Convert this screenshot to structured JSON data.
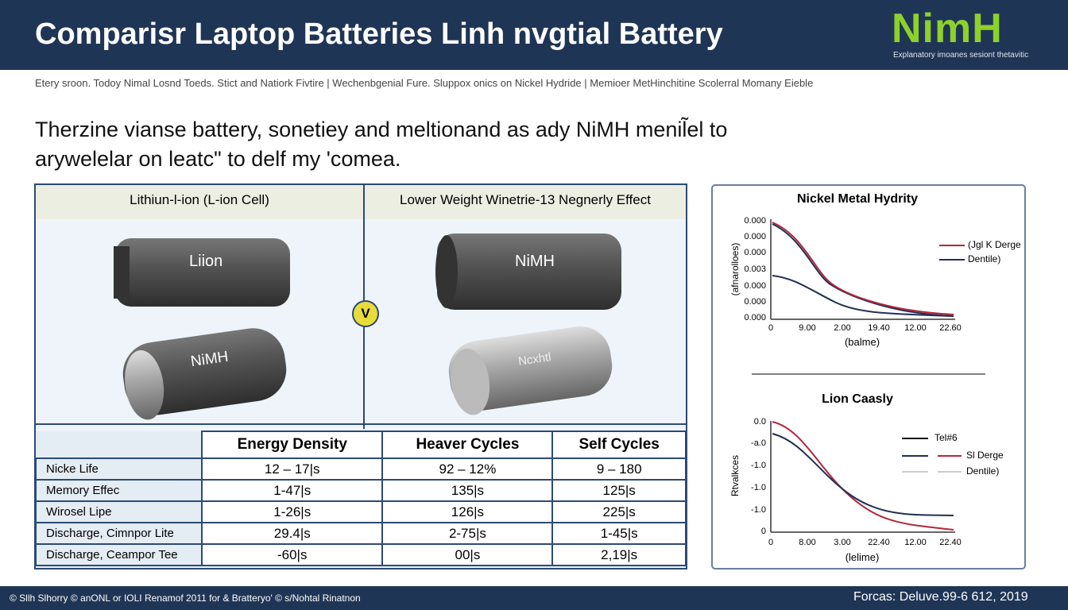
{
  "header": {
    "title": "Comparisr Laptop Batteries Linh nvgtial Battery",
    "logo": "NimH",
    "logo_caption": "Explanatory imoanes sesiont thetavitic"
  },
  "subtitle": "Etery sroon. Todoy Nimal Losnd Toeds. Stict and Natiork Fivtire | Wechenbgenial Fure. Sluppox onics on Nickel Hydride | Memioer MetHinchitine Scolerral Momany Eieble",
  "intro": [
    "Therzine vianse battery, sonetiey and meltionand as ady NiMH menil̃el to",
    "arywelelar on leatc\" to delf my 'comea."
  ],
  "comparison": {
    "column_headers": [
      "Lithiun-l-ion (L-ion Cell)",
      "Lower Weight Winetrie-13  Negnerly Effect"
    ],
    "image_labels": [
      "Liion",
      "NiMH",
      "NiMH",
      "Ncxhtl"
    ],
    "versus": "V"
  },
  "table": {
    "headers": [
      "Energy Density",
      "Heaver Cycles",
      "Self Cycles"
    ],
    "rows": [
      [
        "Nicke Life",
        "12 – 17|s",
        "92 – 12%",
        "9 – 180"
      ],
      [
        "Memory Effec",
        "1-47|s",
        "135|s",
        "125|s"
      ],
      [
        "Wirosel Lipe",
        "1-26|s",
        "126|s",
        "225|s"
      ],
      [
        "Discharge, Cimnpor Lite",
        "29.4|s",
        "2-75|s",
        "1-45|s"
      ],
      [
        "Discharge, Ceampor Tee",
        "-60|s",
        "00|s",
        "2,19|s"
      ]
    ]
  },
  "charts": [
    {
      "title": "Nickel Metal Hydrity",
      "y_label": "(afnarolloes)",
      "x_label": "(balme)",
      "yticks": [
        "0.000",
        "0.000",
        "0.000",
        "0.003",
        "0.000",
        "0.000",
        "0.000"
      ],
      "xticks": [
        "0",
        "9.00",
        "2.00",
        "19.40",
        "12.00",
        "22.60"
      ],
      "legend": [
        "(Jgl K Derge",
        "Dentile)"
      ]
    },
    {
      "title": "Lion Caasly",
      "y_label": "Rtvalkces",
      "x_label": "(lelime)",
      "yticks": [
        "0.0",
        "-a.0",
        "-1.0",
        "-1.0",
        "-1.0",
        "0"
      ],
      "xticks": [
        "0",
        "8.00",
        "3.00",
        "22.40",
        "12.00",
        "22.40"
      ],
      "legend": [
        "Tel#6",
        "Sl Derge",
        "Dentile)"
      ]
    }
  ],
  "footer": {
    "left": "© Sllh Slhorry  © anONL or IOLI Renamof 2011 for & Bratteryo'  © s/Nohtal Rinatnon",
    "right": "Forcas:  Deluve.99-6 612, 2019"
  }
}
